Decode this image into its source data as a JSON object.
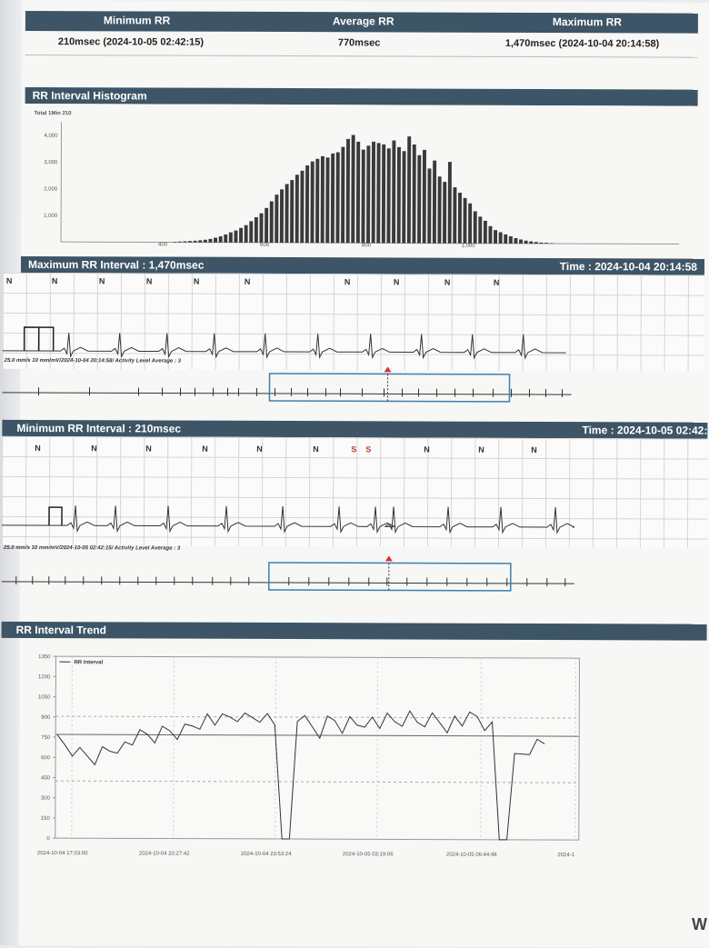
{
  "summary": {
    "headers": [
      "Minimum RR",
      "Average RR",
      "Maximum RR"
    ],
    "min": "210msec (2024-10-05 02:42:15)",
    "avg": "770msec",
    "max": "1,470msec (2024-10-04 20:14:58)"
  },
  "histogram": {
    "title": "RR Interval Histogram",
    "total_label": "Total 1Min 210",
    "y_ticks": [
      "4,000",
      "3,000",
      "2,000",
      "1,000"
    ],
    "x_ticks": [
      "400",
      "600",
      "800",
      "1,000"
    ],
    "chart_data": {
      "type": "bar",
      "title": "RR Interval Histogram",
      "x_range": [
        200,
        1200
      ],
      "y_range": [
        0,
        4500
      ],
      "bin_width": 10,
      "bins_start": 420,
      "values": [
        20,
        30,
        40,
        50,
        60,
        80,
        100,
        130,
        180,
        230,
        300,
        380,
        450,
        550,
        650,
        800,
        950,
        1100,
        1300,
        1550,
        1800,
        2000,
        2200,
        2350,
        2550,
        2700,
        2900,
        3050,
        3150,
        3250,
        3200,
        3350,
        3400,
        3600,
        3900,
        4050,
        3800,
        3500,
        3650,
        3800,
        3750,
        3700,
        3550,
        3850,
        3600,
        3450,
        4000,
        3700,
        3300,
        3500,
        2800,
        3100,
        2500,
        2300,
        3050,
        2100,
        1900,
        1700,
        1500,
        1200,
        1000,
        850,
        650,
        500,
        420,
        340,
        270,
        200,
        150,
        110,
        80,
        60,
        40,
        30,
        20
      ]
    }
  },
  "max_rr": {
    "title": "Maximum RR Interval : 1,470msec",
    "time": "Time : 2024-10-04 20:14:58",
    "beats": [
      "N",
      "N",
      "N",
      "N",
      "N",
      "N",
      "N",
      "N",
      "N",
      "N"
    ],
    "caption": "25.0 mm/s  10 mm/mV/2024-10-04 20:14:58/ Activity Level Average : 3"
  },
  "min_rr": {
    "title": "Minimum RR Interval : 210msec",
    "time": "Time : 2024-10-05 02:42:",
    "beats": [
      "N",
      "N",
      "N",
      "N",
      "N",
      "N",
      "S",
      "S",
      "N",
      "N",
      "N"
    ],
    "caption": "25.0 mm/s  10 mm/mV/2024-10-05 02:42:15/ Activity Level Average : 3"
  },
  "trend": {
    "title": "RR Interval Trend",
    "legend": "RR Interval",
    "y_ticks": [
      "1350",
      "1200",
      "1050",
      "900",
      "750",
      "600",
      "450",
      "300",
      "150",
      "0"
    ],
    "x_ticks": [
      "2024-10-04 17:03:00",
      "2024-10-04 20:27:42",
      "2024-10-04 23:53:24",
      "2024-10-05 03:19:06",
      "2024-10-05 06:44:48",
      "2024-1"
    ],
    "chart_data": {
      "type": "line",
      "title": "RR Interval Trend",
      "ylim": [
        0,
        1350
      ],
      "series": [
        {
          "name": "RR Interval",
          "values": [
            700,
            680,
            650,
            620,
            610,
            600,
            640,
            660,
            700,
            690,
            720,
            740,
            760,
            750,
            780,
            800,
            790,
            810,
            850,
            880,
            900,
            870,
            860,
            890,
            910,
            880,
            900,
            920,
            890,
            860,
            0,
            0,
            900,
            850,
            820,
            790,
            860,
            880,
            840,
            870,
            860,
            900,
            880,
            850,
            870,
            860,
            880,
            900,
            870,
            890,
            900,
            880,
            860,
            890,
            870,
            880,
            900,
            850,
            820,
            0,
            0,
            600,
            650,
            700,
            720,
            740
          ]
        }
      ],
      "reference_lines": [
        905,
        770,
        425
      ]
    }
  }
}
